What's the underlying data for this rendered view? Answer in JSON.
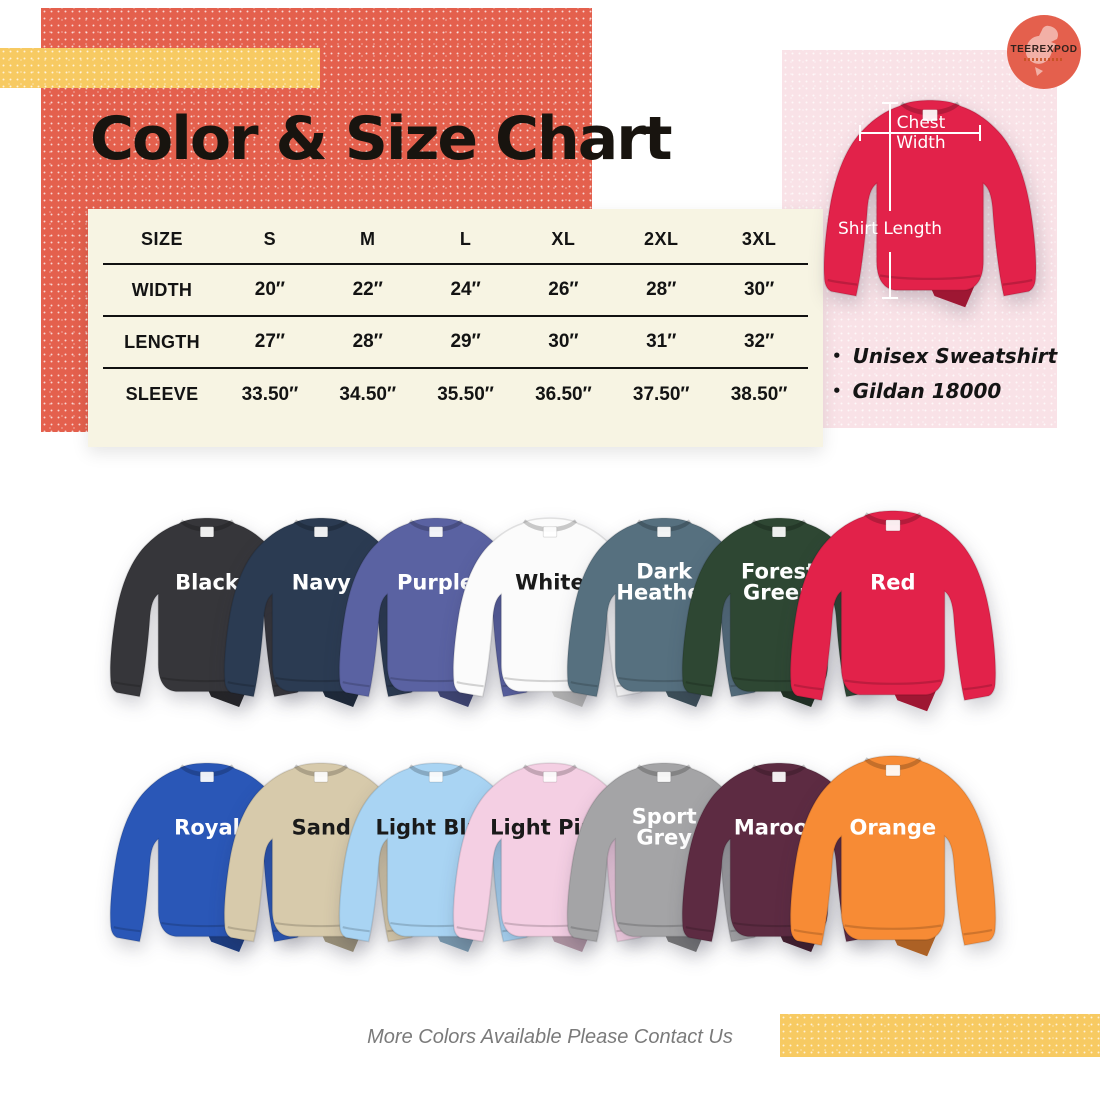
{
  "page": {
    "title": "Color & Size Chart",
    "footer_note": "More Colors Available Please Contact Us"
  },
  "logo": {
    "brand": "TEEREXPOD"
  },
  "product_panel": {
    "measurement_labels": {
      "chest": "Chest Width",
      "length": "Shirt Length"
    },
    "notes": [
      "Unisex Sweatshirt",
      "Gildan 18000"
    ],
    "display_shirt": {
      "name": "Red",
      "hex": "#e2224a"
    }
  },
  "size_chart": {
    "columns": [
      "SIZE",
      "S",
      "M",
      "L",
      "XL",
      "2XL",
      "3XL"
    ],
    "rows": [
      {
        "label": "WIDTH",
        "values": [
          "20″",
          "22″",
          "24″",
          "26″",
          "28″",
          "30″"
        ]
      },
      {
        "label": "LENGTH",
        "values": [
          "27″",
          "28″",
          "29″",
          "30″",
          "31″",
          "32″"
        ]
      },
      {
        "label": "SLEEVE",
        "values": [
          "33.50″",
          "34.50″",
          "35.50″",
          "36.50″",
          "37.50″",
          "38.50″"
        ]
      }
    ]
  },
  "color_rows": [
    [
      {
        "name": "Black",
        "hex": "#36363a",
        "label_color": "#ffffff"
      },
      {
        "name": "Navy",
        "hex": "#2b3b52",
        "label_color": "#ffffff"
      },
      {
        "name": "Purple",
        "hex": "#5a62a2",
        "label_color": "#ffffff"
      },
      {
        "name": "White",
        "hex": "#fbfbfb",
        "label_color": "#1a1a1a"
      },
      {
        "name": "Dark Heather",
        "hex": "#56707f",
        "label_color": "#ffffff"
      },
      {
        "name": "Forest Green",
        "hex": "#2e4733",
        "label_color": "#ffffff"
      },
      {
        "name": "Red",
        "hex": "#e2224a",
        "label_color": "#ffffff"
      }
    ],
    [
      {
        "name": "Royal",
        "hex": "#2a57b7",
        "label_color": "#ffffff"
      },
      {
        "name": "Sand",
        "hex": "#d7caab",
        "label_color": "#1a1a1a"
      },
      {
        "name": "Light Blue",
        "hex": "#a9d4f3",
        "label_color": "#1a1a1a"
      },
      {
        "name": "Light Pink",
        "hex": "#f4cfe3",
        "label_color": "#1a1a1a"
      },
      {
        "name": "Sport Grey",
        "hex": "#a4a4a6",
        "label_color": "#ffffff"
      },
      {
        "name": "Maroon",
        "hex": "#5d2b42",
        "label_color": "#ffffff"
      },
      {
        "name": "Orange",
        "hex": "#f78b35",
        "label_color": "#ffffff"
      }
    ]
  ],
  "palette": {
    "coral": "#e4604d",
    "yellow": "#f7ca62",
    "cream": "#f7f4e3",
    "pink": "#f9e2e7"
  }
}
